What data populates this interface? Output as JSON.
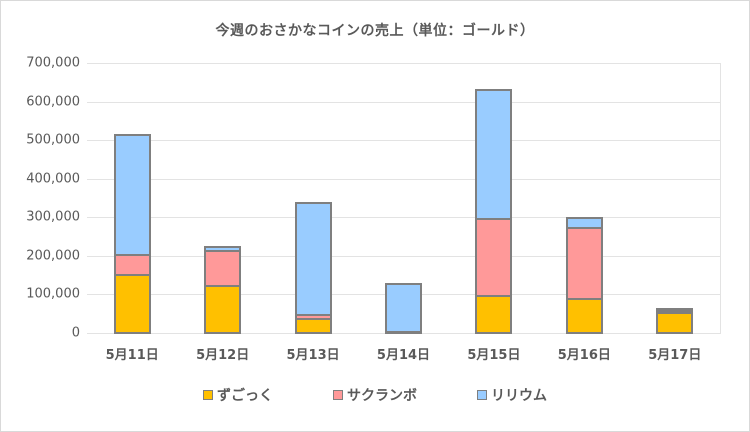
{
  "chart_data": {
    "type": "bar",
    "stacked": true,
    "title": "今週のおさかなコインの売上（単位：ゴールド）",
    "xlabel": "",
    "ylabel": "",
    "ylim": [
      0,
      700000
    ],
    "y_ticks": [
      "0",
      "100,000",
      "200,000",
      "300,000",
      "400,000",
      "500,000",
      "600,000",
      "700,000"
    ],
    "grid": true,
    "legend_position": "bottom",
    "categories": [
      "5月11日",
      "5月12日",
      "5月13日",
      "5月14日",
      "5月15日",
      "5月16日",
      "5月17日"
    ],
    "series": [
      {
        "name": "ずごっく",
        "color": "#ffc000",
        "values": [
          155000,
          127000,
          42000,
          3000,
          100000,
          93000,
          58000
        ]
      },
      {
        "name": "サクランボ",
        "color": "#ff9999",
        "values": [
          52000,
          90000,
          10000,
          5000,
          200000,
          184000,
          3000
        ]
      },
      {
        "name": "リリウム",
        "color": "#99ccff",
        "values": [
          312000,
          11000,
          291000,
          125000,
          335000,
          27000,
          4000
        ]
      }
    ]
  }
}
